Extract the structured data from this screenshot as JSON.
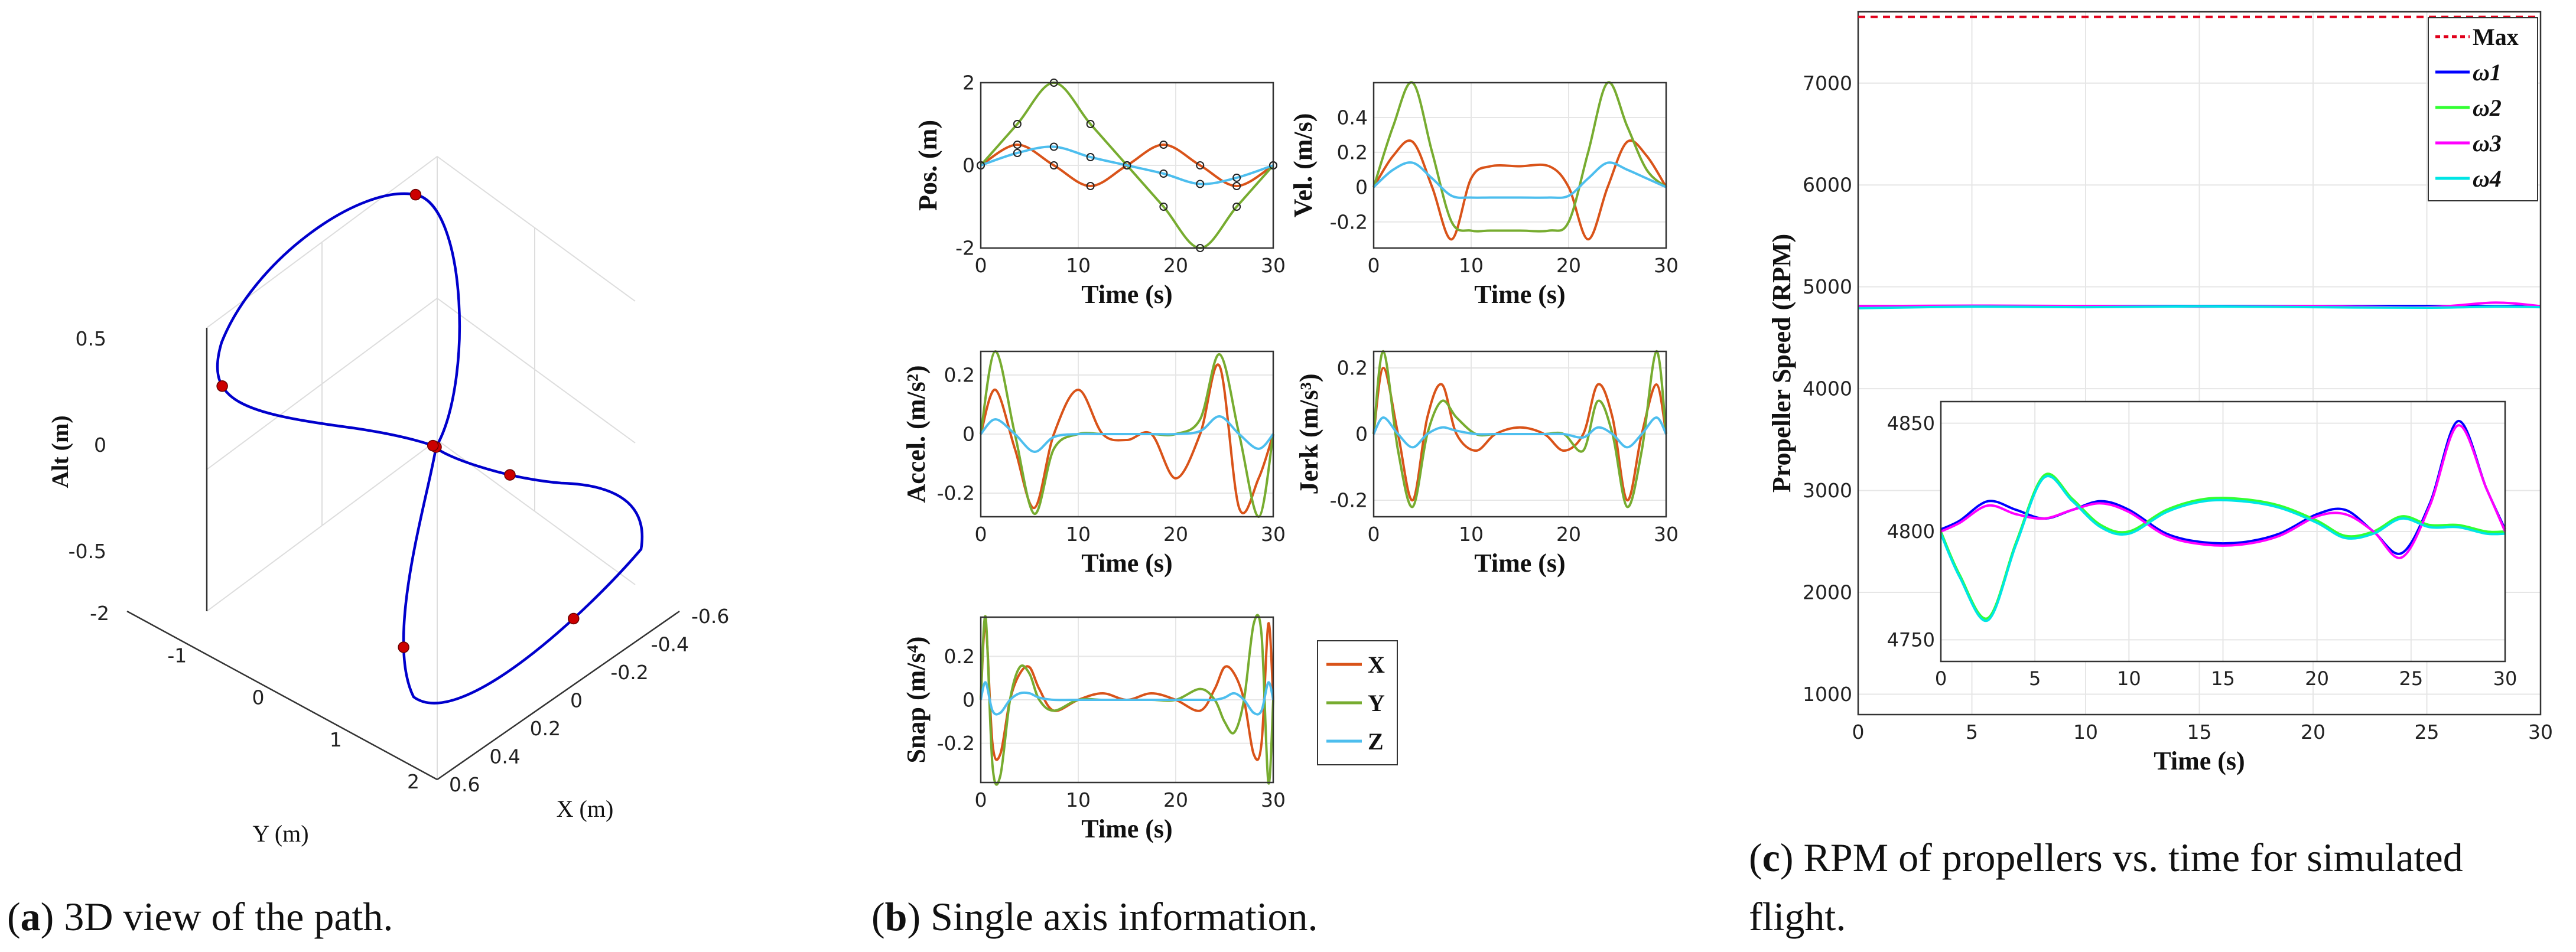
{
  "captions": {
    "a": {
      "letter": "a",
      "text": "3D view of the path."
    },
    "b": {
      "letter": "b",
      "text": "Single axis information."
    },
    "c": {
      "letter": "c",
      "line1": "RPM of propellers vs. time for simulated",
      "line2": "flight."
    }
  },
  "colors": {
    "x": "#d95319",
    "y": "#77ac30",
    "z": "#4dbeee",
    "path": "#0000cc",
    "waypoint": "#cc0000",
    "max": "#e0001b",
    "w1": "#0000ff",
    "w2": "#33ff33",
    "w3": "#ff00ff",
    "w4": "#00e5e5"
  },
  "chart_data": [
    {
      "id": "a",
      "type": "line3d",
      "xlabel": "X (m)",
      "ylabel": "Y (m)",
      "zlabel": "Alt (m)",
      "x_ticks": [
        "-0.6",
        "-0.4",
        "-0.2",
        "0",
        "0.2",
        "0.4",
        "0.6"
      ],
      "y_ticks": [
        "-2",
        "-1",
        "0",
        "1",
        "2"
      ],
      "z_ticks": [
        "0.5",
        "0",
        "-0.5"
      ],
      "xlim": [
        -0.6,
        0.6
      ],
      "ylim": [
        -2,
        2
      ],
      "zlim": [
        -0.6,
        0.6
      ],
      "path": "figure-eight",
      "waypoints": 7
    },
    {
      "id": "b-pos",
      "type": "line",
      "ylabel": "Pos. (m)",
      "xlabel": "Time (s)",
      "xlim": [
        0,
        30
      ],
      "ylim": [
        -2,
        2
      ],
      "x_ticks": [
        "0",
        "10",
        "20",
        "30"
      ],
      "y_ticks": [
        "2",
        "0",
        "-2"
      ],
      "series": [
        {
          "name": "X",
          "x": [
            0,
            3.75,
            7.5,
            11.25,
            15,
            18.75,
            22.5,
            26.25,
            30
          ],
          "y": [
            0,
            0.5,
            0,
            -0.5,
            0,
            0.5,
            0,
            -0.5,
            0
          ]
        },
        {
          "name": "Y",
          "x": [
            0,
            3.75,
            7.5,
            11.25,
            15,
            18.75,
            22.5,
            26.25,
            30
          ],
          "y": [
            0,
            1,
            2,
            1,
            0,
            -1,
            -2,
            -1,
            0
          ]
        },
        {
          "name": "Z",
          "x": [
            0,
            3.75,
            7.5,
            11.25,
            15,
            18.75,
            22.5,
            26.25,
            30
          ],
          "y": [
            0,
            0.3,
            0.45,
            0.2,
            0,
            -0.2,
            -0.45,
            -0.3,
            0
          ]
        }
      ]
    },
    {
      "id": "b-vel",
      "type": "line",
      "ylabel": "Vel. (m/s)",
      "xlabel": "Time (s)",
      "xlim": [
        0,
        30
      ],
      "ylim": [
        -0.35,
        0.6
      ],
      "x_ticks": [
        "0",
        "10",
        "20",
        "30"
      ],
      "y_ticks": [
        "0.4",
        "0.2",
        "0",
        "-0.2"
      ],
      "series": [
        {
          "name": "X",
          "x": [
            0,
            2,
            4,
            6,
            8,
            10,
            12,
            15,
            18,
            20,
            22,
            24,
            26,
            28,
            30
          ],
          "y": [
            0,
            0.18,
            0.26,
            0,
            -0.3,
            0.05,
            0.12,
            0.12,
            0.12,
            0,
            -0.3,
            0,
            0.26,
            0.18,
            0
          ]
        },
        {
          "name": "Y",
          "x": [
            0,
            2,
            4,
            6,
            8,
            10,
            12,
            15,
            18,
            20,
            22,
            24,
            26,
            28,
            30
          ],
          "y": [
            0,
            0.35,
            0.6,
            0.2,
            -0.2,
            -0.25,
            -0.25,
            -0.25,
            -0.25,
            -0.2,
            0.2,
            0.6,
            0.35,
            0.1,
            0
          ]
        },
        {
          "name": "Z",
          "x": [
            0,
            2,
            4,
            6,
            8,
            10,
            12,
            15,
            18,
            20,
            22,
            24,
            26,
            28,
            30
          ],
          "y": [
            0,
            0.1,
            0.14,
            0.05,
            -0.05,
            -0.06,
            -0.06,
            -0.06,
            -0.06,
            -0.05,
            0.05,
            0.14,
            0.1,
            0.05,
            0
          ]
        }
      ]
    },
    {
      "id": "b-acc",
      "type": "line",
      "ylabel": "Accel. (m/s²)",
      "xlabel": "Time (s)",
      "xlim": [
        0,
        30
      ],
      "ylim": [
        -0.28,
        0.28
      ],
      "x_ticks": [
        "0",
        "10",
        "20",
        "30"
      ],
      "y_ticks": [
        "0.2",
        "0",
        "-0.2"
      ],
      "series": [
        {
          "name": "X",
          "x": [
            0,
            1.5,
            3.5,
            5.5,
            7.5,
            10,
            12.5,
            15,
            17.5,
            20,
            22.5,
            24.5,
            26.5,
            28.5,
            30
          ],
          "y": [
            0,
            0.15,
            -0.05,
            -0.25,
            0,
            0.15,
            0,
            -0.02,
            0,
            -0.15,
            0,
            0.23,
            -0.25,
            -0.15,
            0
          ]
        },
        {
          "name": "Y",
          "x": [
            0,
            1.5,
            3.5,
            5.5,
            7.5,
            10,
            12.5,
            15,
            17.5,
            20,
            22.5,
            24.5,
            26.5,
            28.5,
            30
          ],
          "y": [
            0,
            0.28,
            0,
            -0.27,
            -0.05,
            0,
            0,
            0,
            0,
            0,
            0.05,
            0.27,
            0,
            -0.28,
            0
          ]
        },
        {
          "name": "Z",
          "x": [
            0,
            1.5,
            3.5,
            5.5,
            7.5,
            10,
            12.5,
            15,
            17.5,
            20,
            22.5,
            24.5,
            26.5,
            28.5,
            30
          ],
          "y": [
            0,
            0.05,
            0,
            -0.06,
            -0.01,
            0,
            0,
            0,
            0,
            0,
            0.01,
            0.06,
            0,
            -0.05,
            0
          ]
        }
      ]
    },
    {
      "id": "b-jerk",
      "type": "line",
      "ylabel": "Jerk (m/s³)",
      "xlabel": "Time (s)",
      "xlim": [
        0,
        30
      ],
      "ylim": [
        -0.25,
        0.25
      ],
      "x_ticks": [
        "0",
        "10",
        "20",
        "30"
      ],
      "y_ticks": [
        "0.2",
        "0",
        "-0.2"
      ],
      "series": [
        {
          "name": "X",
          "x": [
            0,
            1,
            2.5,
            4,
            5.5,
            7,
            8.5,
            10.5,
            12.5,
            15,
            17.5,
            19.5,
            21.5,
            23,
            24.5,
            26,
            27.5,
            29,
            30
          ],
          "y": [
            0,
            0.2,
            0,
            -0.2,
            0.05,
            0.15,
            0,
            -0.05,
            0,
            0.02,
            0,
            -0.05,
            0,
            0.15,
            0.05,
            -0.2,
            0,
            0.15,
            0
          ]
        },
        {
          "name": "Y",
          "x": [
            0,
            1,
            2.5,
            4,
            5.5,
            7,
            8.5,
            10.5,
            12.5,
            15,
            17.5,
            19.5,
            21.5,
            23,
            24.5,
            26,
            27.5,
            29,
            30
          ],
          "y": [
            0,
            0.25,
            -0.05,
            -0.22,
            0,
            0.1,
            0.05,
            0,
            0,
            0,
            0,
            0,
            -0.05,
            0.1,
            0,
            -0.22,
            -0.05,
            0.25,
            0
          ]
        },
        {
          "name": "Z",
          "x": [
            0,
            1,
            2.5,
            4,
            5.5,
            7,
            8.5,
            10.5,
            12.5,
            15,
            17.5,
            19.5,
            21.5,
            23,
            24.5,
            26,
            27.5,
            29,
            30
          ],
          "y": [
            0,
            0.05,
            0,
            -0.04,
            0,
            0.02,
            0.01,
            0,
            0,
            0,
            0,
            0,
            -0.01,
            0.02,
            0,
            -0.04,
            0,
            0.05,
            0
          ]
        }
      ]
    },
    {
      "id": "b-snap",
      "type": "line",
      "ylabel": "Snap (m/s⁴)",
      "xlabel": "Time (s)",
      "xlim": [
        0,
        30
      ],
      "ylim": [
        -0.38,
        0.38
      ],
      "x_ticks": [
        "0",
        "10",
        "20",
        "30"
      ],
      "y_ticks": [
        "0.2",
        "0",
        "-0.2"
      ],
      "series": [
        {
          "name": "X",
          "x": [
            0,
            0.5,
            1.2,
            2,
            3,
            4,
            5,
            6,
            7.5,
            10,
            12.5,
            15,
            17.5,
            20,
            22.5,
            24,
            25,
            26,
            27,
            28,
            28.8,
            29.5,
            30
          ],
          "y": [
            0,
            0.35,
            -0.2,
            -0.25,
            0,
            0.12,
            0.15,
            0.05,
            -0.05,
            0,
            0.03,
            0,
            0.03,
            0,
            -0.05,
            0.05,
            0.15,
            0.12,
            0,
            -0.25,
            -0.2,
            0.35,
            0
          ]
        },
        {
          "name": "Y",
          "x": [
            0,
            0.5,
            1.2,
            2,
            3,
            4,
            5,
            6,
            7.5,
            10,
            12.5,
            15,
            17.5,
            20,
            22.5,
            24,
            25,
            26,
            27,
            28,
            28.8,
            29.5,
            30
          ],
          "y": [
            0,
            0.38,
            -0.3,
            -0.35,
            0,
            0.15,
            0.12,
            0,
            -0.05,
            0,
            0,
            0,
            0,
            0,
            0.05,
            0,
            -0.1,
            -0.15,
            0,
            0.35,
            0.3,
            -0.38,
            0
          ]
        },
        {
          "name": "Z",
          "x": [
            0,
            0.5,
            1.2,
            2,
            3,
            4,
            5,
            6,
            7.5,
            10,
            12.5,
            15,
            17.5,
            20,
            22.5,
            24,
            25,
            26,
            27,
            28,
            28.8,
            29.5,
            30
          ],
          "y": [
            0,
            0.08,
            -0.05,
            -0.06,
            0,
            0.03,
            0.03,
            0.01,
            0,
            0,
            0,
            0,
            0,
            0,
            0,
            0,
            0.01,
            0.03,
            0,
            -0.06,
            -0.05,
            0.08,
            0
          ]
        }
      ]
    },
    {
      "id": "c-main",
      "type": "line",
      "ylabel": "Propeller Speed (RPM)",
      "xlabel": "Time (s)",
      "xlim": [
        0,
        30
      ],
      "ylim": [
        800,
        7700
      ],
      "x_ticks": [
        "0",
        "5",
        "10",
        "15",
        "20",
        "25",
        "30"
      ],
      "y_ticks": [
        "7000",
        "6000",
        "5000",
        "4000",
        "3000",
        "2000",
        "1000"
      ],
      "max_rpm": 7650,
      "legend": [
        "Max",
        "ω1",
        "ω2",
        "ω3",
        "ω4"
      ],
      "series": [
        {
          "name": "ω1",
          "x": [
            0,
            30
          ],
          "y": [
            4812,
            4812
          ]
        },
        {
          "name": "ω3",
          "x": [
            0,
            5,
            10,
            15,
            20,
            25,
            28,
            30
          ],
          "y": [
            4810,
            4815,
            4812,
            4805,
            4810,
            4800,
            4845,
            4810
          ]
        },
        {
          "name": "ω4",
          "x": [
            0,
            5,
            10,
            15,
            20,
            25,
            28,
            30
          ],
          "y": [
            4790,
            4805,
            4800,
            4808,
            4800,
            4795,
            4805,
            4800
          ]
        }
      ]
    },
    {
      "id": "c-inset",
      "type": "line",
      "xlim": [
        0,
        30
      ],
      "ylim": [
        4740,
        4860
      ],
      "x_ticks": [
        "0",
        "5",
        "10",
        "15",
        "20",
        "25",
        "30"
      ],
      "y_ticks": [
        "4850",
        "4800",
        "4750"
      ],
      "series": [
        {
          "name": "ω1",
          "x": [
            0,
            1,
            2.5,
            4,
            5.5,
            7,
            8.5,
            10,
            12,
            14,
            16,
            18,
            20,
            21.5,
            23,
            24.5,
            26,
            27.5,
            29,
            30
          ],
          "y": [
            4801,
            4805,
            4814,
            4810,
            4806,
            4810,
            4814,
            4810,
            4799,
            4795,
            4795,
            4799,
            4808,
            4810,
            4800,
            4790,
            4813,
            4851,
            4820,
            4801
          ]
        },
        {
          "name": "ω2",
          "x": [
            0,
            1,
            2.5,
            4,
            5.5,
            7,
            8.5,
            10,
            12,
            14,
            16,
            18,
            20,
            21.5,
            23,
            24.5,
            26,
            27.5,
            29,
            30
          ],
          "y": [
            4800,
            4780,
            4760,
            4795,
            4826,
            4815,
            4803,
            4800,
            4810,
            4815,
            4815,
            4812,
            4805,
            4798,
            4800,
            4807,
            4803,
            4803,
            4800,
            4800
          ]
        },
        {
          "name": "ω3",
          "x": [
            0,
            1,
            2.5,
            4,
            5.5,
            7,
            8.5,
            10,
            12,
            14,
            16,
            18,
            20,
            21.5,
            23,
            24.5,
            26,
            27.5,
            29,
            30
          ],
          "y": [
            4800,
            4804,
            4812,
            4808,
            4806,
            4810,
            4813,
            4809,
            4798,
            4794,
            4794,
            4798,
            4807,
            4808,
            4800,
            4788,
            4812,
            4849,
            4820,
            4800
          ]
        },
        {
          "name": "ω4",
          "x": [
            0,
            1,
            2.5,
            4,
            5.5,
            7,
            8.5,
            10,
            12,
            14,
            16,
            18,
            20,
            21.5,
            23,
            24.5,
            26,
            27.5,
            29,
            30
          ],
          "y": [
            4799,
            4779,
            4759,
            4794,
            4825,
            4814,
            4802,
            4799,
            4809,
            4814,
            4814,
            4811,
            4804,
            4797,
            4799,
            4806,
            4802,
            4802,
            4799,
            4799
          ]
        }
      ]
    }
  ],
  "legend_b": [
    {
      "key": "x",
      "label": "X"
    },
    {
      "key": "y",
      "label": "Y"
    },
    {
      "key": "z",
      "label": "Z"
    }
  ]
}
